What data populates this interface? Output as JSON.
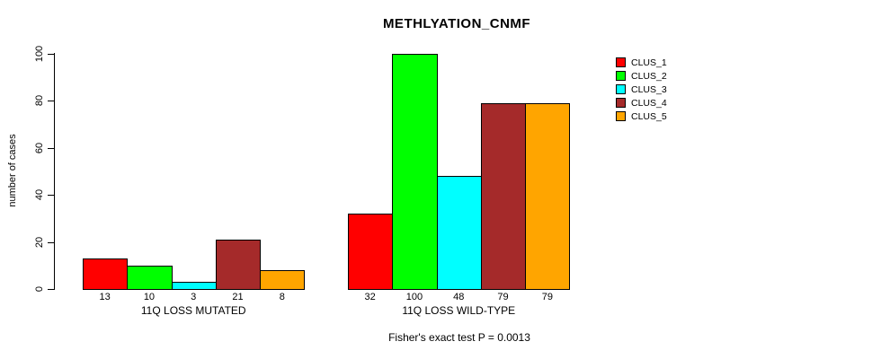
{
  "title": "METHLYATION_CNMF",
  "caption": "Fisher's exact test P = 0.0013",
  "colors": {
    "background": "#FFFFFF",
    "text": "#000000",
    "axis": "#000000"
  },
  "chart_data": {
    "type": "bar",
    "title": "METHLYATION_CNMF",
    "xlabel": "",
    "ylabel": "number of cases",
    "ylim": [
      0,
      100
    ],
    "yticks": [
      0,
      20,
      40,
      60,
      80,
      100
    ],
    "grid": false,
    "bar_value_labels": true,
    "legend_position": "right-outside",
    "series": [
      {
        "name": "CLUS_1",
        "color": "#FF0000"
      },
      {
        "name": "CLUS_2",
        "color": "#00FF00"
      },
      {
        "name": "CLUS_3",
        "color": "#00FFFF"
      },
      {
        "name": "CLUS_4",
        "color": "#A52A2A"
      },
      {
        "name": "CLUS_5",
        "color": "#FFA500"
      }
    ],
    "groups": [
      {
        "label": "11Q LOSS MUTATED",
        "values": [
          13,
          10,
          3,
          21,
          8
        ]
      },
      {
        "label": "11Q LOSS WILD-TYPE",
        "values": [
          32,
          100,
          48,
          79,
          79
        ]
      }
    ],
    "annotation": "Fisher's exact test P = 0.0013"
  }
}
